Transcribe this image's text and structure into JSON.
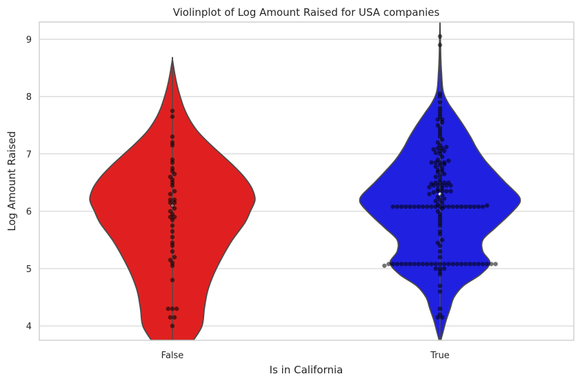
{
  "chart_data": {
    "type": "violin",
    "title": "Violinplot of Log Amount Raised for USA companies",
    "xlabel": "Is in California",
    "ylabel": "Log Amount Raised",
    "categories": [
      "False",
      "True"
    ],
    "ylim": [
      3.75,
      9.3
    ],
    "yticks": [
      "4",
      "5",
      "6",
      "7",
      "8",
      "9"
    ],
    "grid": true,
    "colors": {
      "False": "#e02020",
      "True": "#2020e0",
      "points": "#000000",
      "outline": "#4a4a4a"
    },
    "violins": [
      {
        "category": "False",
        "min": 3.75,
        "max": 8.65,
        "median": 6.1,
        "density_profile": [
          [
            3.75,
            0.27
          ],
          [
            4.0,
            0.38
          ],
          [
            4.3,
            0.41
          ],
          [
            4.6,
            0.45
          ],
          [
            4.9,
            0.53
          ],
          [
            5.2,
            0.64
          ],
          [
            5.5,
            0.77
          ],
          [
            5.8,
            0.93
          ],
          [
            6.0,
            1.0
          ],
          [
            6.2,
            1.06
          ],
          [
            6.4,
            1.02
          ],
          [
            6.6,
            0.92
          ],
          [
            6.8,
            0.78
          ],
          [
            7.0,
            0.62
          ],
          [
            7.2,
            0.46
          ],
          [
            7.4,
            0.32
          ],
          [
            7.6,
            0.22
          ],
          [
            7.8,
            0.15
          ],
          [
            8.0,
            0.1
          ],
          [
            8.2,
            0.06
          ],
          [
            8.4,
            0.03
          ],
          [
            8.65,
            0.0
          ]
        ],
        "points": [
          4.0,
          4.15,
          4.15,
          4.3,
          4.3,
          4.3,
          4.8,
          5.05,
          5.1,
          5.15,
          5.2,
          5.3,
          5.4,
          5.45,
          5.55,
          5.65,
          5.75,
          5.85,
          5.9,
          5.9,
          5.95,
          6.0,
          6.05,
          6.1,
          6.15,
          6.15,
          6.2,
          6.2,
          6.3,
          6.35,
          6.45,
          6.5,
          6.55,
          6.6,
          6.65,
          6.7,
          6.75,
          6.85,
          6.9,
          7.15,
          7.2,
          7.3,
          7.65,
          7.75
        ]
      },
      {
        "category": "True",
        "min": 3.7,
        "max": 9.3,
        "median": 6.3,
        "density_profile": [
          [
            3.7,
            0.0
          ],
          [
            3.9,
            0.04
          ],
          [
            4.1,
            0.08
          ],
          [
            4.3,
            0.13
          ],
          [
            4.5,
            0.18
          ],
          [
            4.7,
            0.3
          ],
          [
            4.9,
            0.52
          ],
          [
            5.1,
            0.64
          ],
          [
            5.3,
            0.55
          ],
          [
            5.5,
            0.55
          ],
          [
            5.7,
            0.7
          ],
          [
            5.9,
            0.86
          ],
          [
            6.1,
            1.0
          ],
          [
            6.2,
            1.03
          ],
          [
            6.3,
            0.99
          ],
          [
            6.5,
            0.84
          ],
          [
            6.7,
            0.7
          ],
          [
            6.9,
            0.57
          ],
          [
            7.1,
            0.47
          ],
          [
            7.3,
            0.39
          ],
          [
            7.5,
            0.3
          ],
          [
            7.7,
            0.2
          ],
          [
            7.9,
            0.1
          ],
          [
            8.1,
            0.04
          ],
          [
            8.4,
            0.02
          ],
          [
            8.7,
            0.01
          ],
          [
            9.3,
            0.0
          ]
        ],
        "points": [
          4.15,
          4.15,
          4.2,
          4.3,
          4.6,
          4.7,
          4.9,
          4.95,
          5.0,
          5.0,
          5.0,
          5.05,
          5.08,
          5.08,
          5.08,
          5.08,
          5.08,
          5.08,
          5.08,
          5.08,
          5.08,
          5.08,
          5.08,
          5.08,
          5.08,
          5.08,
          5.08,
          5.08,
          5.08,
          5.08,
          5.08,
          5.08,
          5.08,
          5.08,
          5.08,
          5.08,
          5.08,
          5.08,
          5.2,
          5.3,
          5.4,
          5.45,
          5.5,
          5.6,
          5.65,
          5.75,
          5.8,
          5.85,
          5.9,
          5.95,
          6.0,
          6.05,
          6.08,
          6.08,
          6.08,
          6.08,
          6.08,
          6.08,
          6.08,
          6.08,
          6.08,
          6.08,
          6.08,
          6.08,
          6.08,
          6.08,
          6.08,
          6.08,
          6.08,
          6.08,
          6.08,
          6.08,
          6.08,
          6.08,
          6.1,
          6.12,
          6.15,
          6.18,
          6.2,
          6.22,
          6.25,
          6.28,
          6.3,
          6.33,
          6.35,
          6.35,
          6.35,
          6.35,
          6.38,
          6.4,
          6.42,
          6.45,
          6.45,
          6.45,
          6.45,
          6.45,
          6.48,
          6.5,
          6.5,
          6.5,
          6.5,
          6.55,
          6.6,
          6.62,
          6.65,
          6.68,
          6.7,
          6.72,
          6.75,
          6.78,
          6.8,
          6.82,
          6.85,
          6.85,
          6.85,
          6.85,
          6.88,
          6.9,
          6.95,
          7.0,
          7.02,
          7.05,
          7.05,
          7.08,
          7.1,
          7.1,
          7.12,
          7.15,
          7.2,
          7.25,
          7.3,
          7.35,
          7.4,
          7.45,
          7.5,
          7.55,
          7.6,
          7.6,
          7.65,
          7.7,
          7.75,
          7.8,
          7.9,
          8.0,
          8.05,
          8.9,
          9.05
        ]
      }
    ]
  }
}
